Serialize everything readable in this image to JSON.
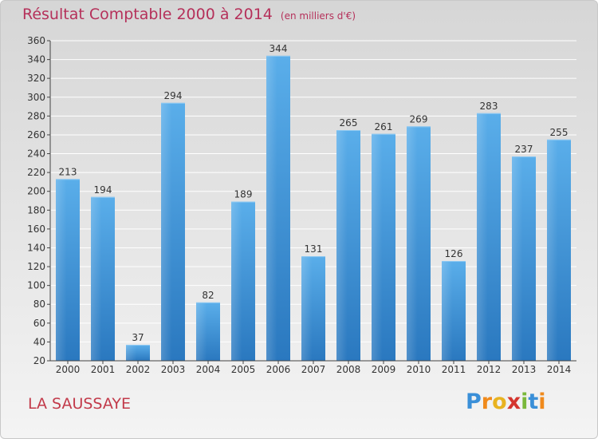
{
  "header": {
    "title": "Résultat Comptable 2000 à 2014",
    "unit": "(en milliers d'€)"
  },
  "footer": {
    "place": "LA SAUSSAYE",
    "logo_letters": [
      "P",
      "r",
      "o",
      "x",
      "i",
      "t",
      "i"
    ],
    "logo_colors": [
      "#3a8fd8",
      "#f08a1c",
      "#e8b320",
      "#d4352e",
      "#7ab83a",
      "#3a8fd8",
      "#f08a1c"
    ]
  },
  "chart_data": {
    "type": "bar",
    "categories": [
      "2000",
      "2001",
      "2002",
      "2003",
      "2004",
      "2005",
      "2006",
      "2007",
      "2008",
      "2009",
      "2010",
      "2011",
      "2012",
      "2013",
      "2014"
    ],
    "values": [
      213,
      194,
      37,
      294,
      82,
      189,
      344,
      131,
      265,
      261,
      269,
      126,
      283,
      237,
      255
    ],
    "ylim": [
      20,
      360
    ],
    "yticks": [
      20,
      40,
      60,
      80,
      100,
      120,
      140,
      160,
      180,
      200,
      220,
      240,
      260,
      280,
      300,
      320,
      340,
      360
    ],
    "grid": true,
    "bar_color": "#4a9fe0",
    "bar_color_dark": "#2a78bf"
  }
}
